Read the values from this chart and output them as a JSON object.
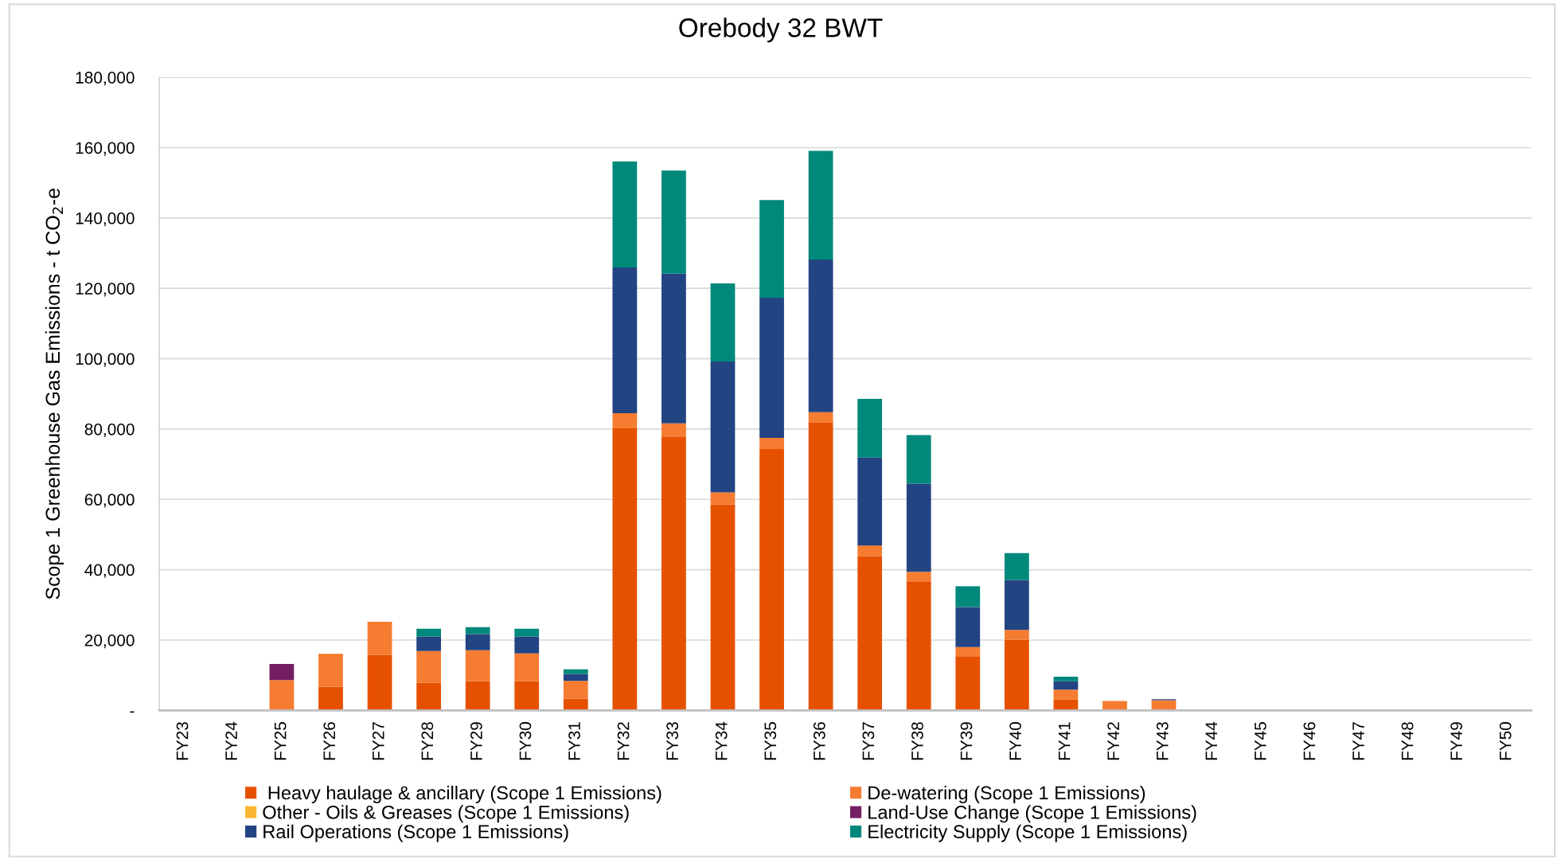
{
  "chart_data": {
    "type": "bar",
    "title": "Orebody 32 BWT",
    "ylabel": "Scope 1 Greenhouse Gas Emissions - t CO$_{2}$-e",
    "stacked": true,
    "grid": "y",
    "legend": "bottom",
    "categories": [
      "FY23",
      "FY24",
      "FY25",
      "FY26",
      "FY27",
      "FY28",
      "FY29",
      "FY30",
      "FY31",
      "FY32",
      "FY33",
      "FY34",
      "FY35",
      "FY36",
      "FY37",
      "FY38",
      "FY39",
      "FY40",
      "FY41",
      "FY42",
      "FY43",
      "FY44",
      "FY45",
      "FY46",
      "FY47",
      "FY48",
      "FY49",
      "FY50"
    ],
    "ylim": [
      0,
      180000
    ],
    "yticks": [
      {
        "value": 0,
        "label": "-"
      },
      {
        "value": 20000,
        "label": "20,000"
      },
      {
        "value": 40000,
        "label": "40,000"
      },
      {
        "value": 60000,
        "label": "60,000"
      },
      {
        "value": 80000,
        "label": "80,000"
      },
      {
        "value": 100000,
        "label": "100,000"
      },
      {
        "value": 120000,
        "label": "120,000"
      },
      {
        "value": 140000,
        "label": "140,000"
      },
      {
        "value": 160000,
        "label": "160,000"
      },
      {
        "value": 180000,
        "label": "180,000"
      }
    ],
    "series": [
      {
        "name": " Heavy haulage & ancillary (Scope 1 Emissions)",
        "color": "#e65100",
        "values": [
          0,
          0,
          0,
          6700,
          15800,
          7900,
          8300,
          8300,
          3300,
          80200,
          77900,
          58600,
          74300,
          81800,
          43800,
          36700,
          15400,
          20100,
          3100,
          0,
          0,
          0,
          0,
          0,
          0,
          0,
          0,
          0
        ]
      },
      {
        "name": "De-watering (Scope 1 Emissions)",
        "color": "#f57c31",
        "values": [
          0,
          0,
          8600,
          9400,
          9400,
          9000,
          8800,
          7900,
          5100,
          4300,
          3700,
          3400,
          3200,
          3000,
          3100,
          2700,
          2600,
          2800,
          2800,
          2700,
          2900,
          0,
          0,
          0,
          0,
          0,
          0,
          0
        ]
      },
      {
        "name": "Other - Oils & Greases (Scope 1 Emissions)",
        "color": "#fbb731",
        "values": [
          0,
          0,
          0,
          0,
          0,
          0,
          0,
          0,
          0,
          0,
          0,
          0,
          0,
          0,
          0,
          0,
          0,
          0,
          0,
          0,
          0,
          0,
          0,
          0,
          0,
          0,
          0,
          0
        ]
      },
      {
        "name": "Land-Use Change (Scope 1 Emissions)",
        "color": "#741f63",
        "values": [
          0,
          0,
          4600,
          0,
          0,
          0,
          0,
          0,
          0,
          0,
          0,
          0,
          0,
          0,
          0,
          0,
          0,
          0,
          0,
          0,
          0,
          0,
          0,
          0,
          0,
          0,
          0,
          0
        ]
      },
      {
        "name": "Rail Operations (Scope 1 Emissions)",
        "color": "#224483",
        "values": [
          0,
          0,
          0,
          0,
          0,
          4100,
          4600,
          4800,
          2000,
          41400,
          42600,
          37200,
          39800,
          43400,
          25000,
          25100,
          11400,
          14200,
          2400,
          0,
          300,
          0,
          0,
          0,
          0,
          0,
          0,
          0
        ]
      },
      {
        "name": "Electricity Supply (Scope 1 Emissions)",
        "color": "#00897b",
        "values": [
          0,
          0,
          0,
          0,
          0,
          2200,
          2000,
          2200,
          1300,
          30200,
          29300,
          22200,
          27800,
          30900,
          16700,
          13800,
          5900,
          7600,
          1300,
          0,
          0,
          0,
          0,
          0,
          0,
          0,
          0,
          0
        ]
      }
    ]
  }
}
